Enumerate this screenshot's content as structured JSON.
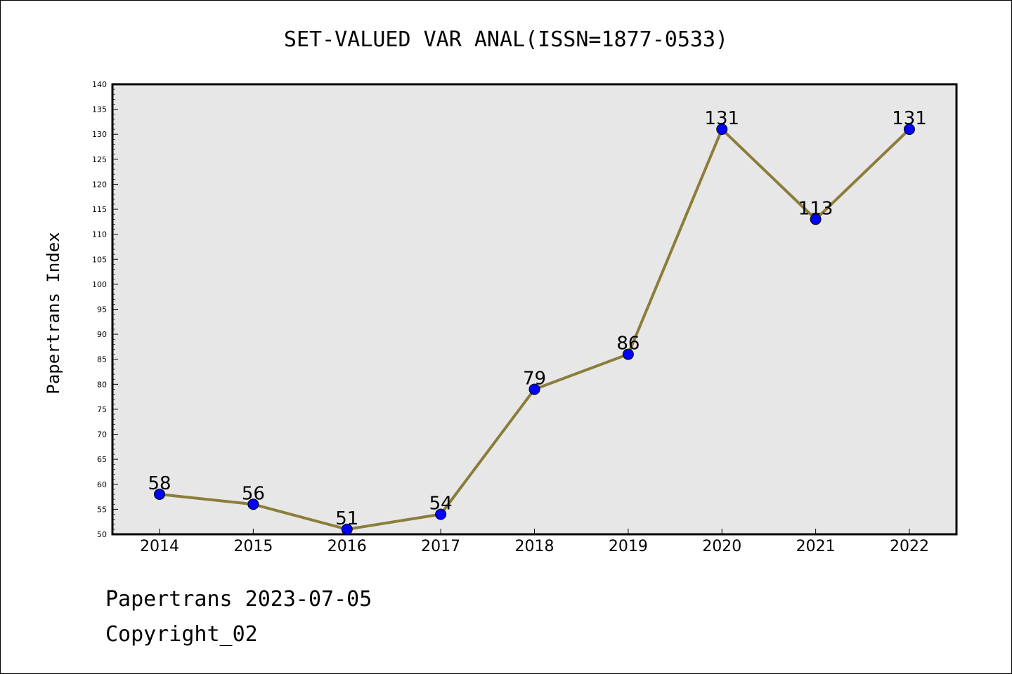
{
  "chart_data": {
    "type": "line",
    "title": "SET-VALUED VAR ANAL(ISSN=1877-0533)",
    "xlabel": "",
    "ylabel": "Papertrans Index",
    "categories": [
      "2014",
      "2015",
      "2016",
      "2017",
      "2018",
      "2019",
      "2020",
      "2021",
      "2022"
    ],
    "values": [
      58,
      56,
      51,
      54,
      79,
      86,
      131,
      113,
      131
    ],
    "ylim": [
      50,
      140
    ],
    "yticks": [
      50,
      55,
      60,
      65,
      70,
      75,
      80,
      85,
      90,
      95,
      100,
      105,
      110,
      115,
      120,
      125,
      130,
      135,
      140
    ],
    "grid": false,
    "colors": {
      "line": "#8B7D3A",
      "marker": "#0000FF",
      "plot_background": "#E7E7E7"
    }
  },
  "footer": {
    "date_line": "Papertrans 2023-07-05",
    "copyright_line": "Copyright_02"
  }
}
